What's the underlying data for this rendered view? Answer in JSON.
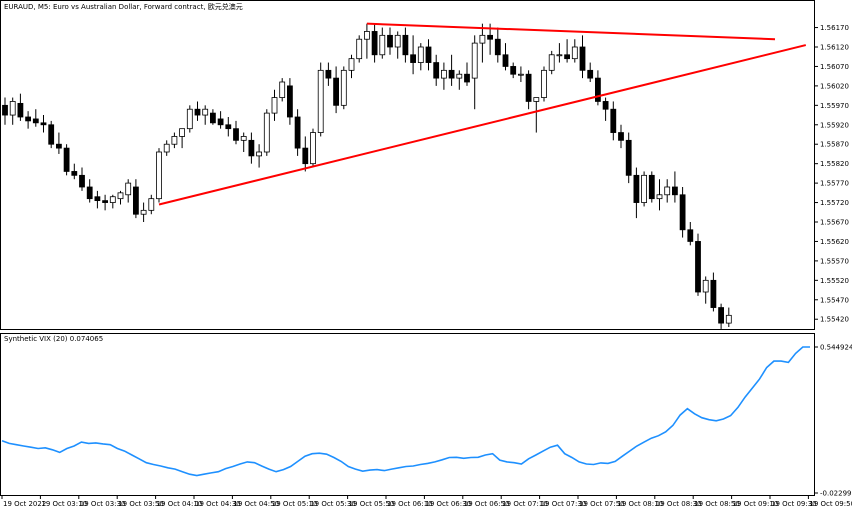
{
  "window": {
    "title": "EURAUD, M5:  Euro vs Australian Dollar, Forward contract, 欧元兑澳元"
  },
  "chart_data": [
    {
      "type": "candlestick",
      "symbol": "EURAUD",
      "timeframe": "M5",
      "price_axis_labels": [
        "1.56170",
        "1.56120",
        "1.56070",
        "1.56020",
        "1.55970",
        "1.55920",
        "1.55870",
        "1.55820",
        "1.55770",
        "1.55720",
        "1.55670",
        "1.55620",
        "1.55570",
        "1.55520",
        "1.55470",
        "1.55420"
      ],
      "ylim": [
        1.554,
        1.5621
      ],
      "x_tick_labels": [
        "19 Oct 2022",
        "19 Oct 03:10",
        "19 Oct 03:30",
        "19 Oct 03:50",
        "19 Oct 04:10",
        "19 Oct 04:30",
        "19 Oct 04:50",
        "19 Oct 05:10",
        "19 Oct 05:30",
        "19 Oct 05:50",
        "19 Oct 06:10",
        "19 Oct 06:30",
        "19 Oct 06:50",
        "19 Oct 07:10",
        "19 Oct 07:30",
        "19 Oct 07:50",
        "19 Oct 08:10",
        "19 Oct 08:30",
        "19 Oct 08:50",
        "19 Oct 09:10",
        "19 Oct 09:30",
        "19 Oct 09:50"
      ],
      "candles": [
        {
          "o": 1.5597,
          "h": 1.5599,
          "l": 1.5592,
          "c": 1.55945
        },
        {
          "o": 1.55945,
          "h": 1.5599,
          "l": 1.5592,
          "c": 1.5598
        },
        {
          "o": 1.55975,
          "h": 1.56,
          "l": 1.5593,
          "c": 1.5594
        },
        {
          "o": 1.5594,
          "h": 1.55955,
          "l": 1.5591,
          "c": 1.5593
        },
        {
          "o": 1.55935,
          "h": 1.5596,
          "l": 1.55915,
          "c": 1.55925
        },
        {
          "o": 1.55925,
          "h": 1.55945,
          "l": 1.559,
          "c": 1.5592
        },
        {
          "o": 1.5592,
          "h": 1.5593,
          "l": 1.5586,
          "c": 1.5587
        },
        {
          "o": 1.5587,
          "h": 1.559,
          "l": 1.55845,
          "c": 1.5586
        },
        {
          "o": 1.5586,
          "h": 1.5587,
          "l": 1.5579,
          "c": 1.558
        },
        {
          "o": 1.558,
          "h": 1.5582,
          "l": 1.5578,
          "c": 1.5579
        },
        {
          "o": 1.5579,
          "h": 1.5581,
          "l": 1.5575,
          "c": 1.5576
        },
        {
          "o": 1.5576,
          "h": 1.5578,
          "l": 1.5572,
          "c": 1.5573
        },
        {
          "o": 1.55735,
          "h": 1.5575,
          "l": 1.55705,
          "c": 1.55725
        },
        {
          "o": 1.55725,
          "h": 1.5574,
          "l": 1.557,
          "c": 1.5572
        },
        {
          "o": 1.5572,
          "h": 1.5574,
          "l": 1.55705,
          "c": 1.55735
        },
        {
          "o": 1.5573,
          "h": 1.5575,
          "l": 1.55715,
          "c": 1.55745
        },
        {
          "o": 1.5574,
          "h": 1.5578,
          "l": 1.5572,
          "c": 1.5577
        },
        {
          "o": 1.5576,
          "h": 1.5578,
          "l": 1.5568,
          "c": 1.5569
        },
        {
          "o": 1.5569,
          "h": 1.5572,
          "l": 1.5567,
          "c": 1.557
        },
        {
          "o": 1.557,
          "h": 1.5574,
          "l": 1.5569,
          "c": 1.5573
        },
        {
          "o": 1.5573,
          "h": 1.5586,
          "l": 1.5572,
          "c": 1.5585
        },
        {
          "o": 1.5585,
          "h": 1.5588,
          "l": 1.5584,
          "c": 1.5587
        },
        {
          "o": 1.5587,
          "h": 1.559,
          "l": 1.5586,
          "c": 1.5589
        },
        {
          "o": 1.5589,
          "h": 1.5591,
          "l": 1.5586,
          "c": 1.5591
        },
        {
          "o": 1.5591,
          "h": 1.5597,
          "l": 1.559,
          "c": 1.5596
        },
        {
          "o": 1.5596,
          "h": 1.5598,
          "l": 1.5593,
          "c": 1.55945
        },
        {
          "o": 1.55945,
          "h": 1.5597,
          "l": 1.5592,
          "c": 1.5596
        },
        {
          "o": 1.5595,
          "h": 1.5596,
          "l": 1.5592,
          "c": 1.55925
        },
        {
          "o": 1.55935,
          "h": 1.55955,
          "l": 1.5591,
          "c": 1.5592
        },
        {
          "o": 1.5592,
          "h": 1.5594,
          "l": 1.5589,
          "c": 1.5591
        },
        {
          "o": 1.5591,
          "h": 1.5593,
          "l": 1.5587,
          "c": 1.5588
        },
        {
          "o": 1.5588,
          "h": 1.559,
          "l": 1.5585,
          "c": 1.5589
        },
        {
          "o": 1.5588,
          "h": 1.559,
          "l": 1.5582,
          "c": 1.5584
        },
        {
          "o": 1.5584,
          "h": 1.5587,
          "l": 1.5581,
          "c": 1.5585
        },
        {
          "o": 1.5585,
          "h": 1.5596,
          "l": 1.5584,
          "c": 1.5595
        },
        {
          "o": 1.5595,
          "h": 1.5601,
          "l": 1.5593,
          "c": 1.5599
        },
        {
          "o": 1.5599,
          "h": 1.5604,
          "l": 1.5598,
          "c": 1.5603
        },
        {
          "o": 1.5602,
          "h": 1.5604,
          "l": 1.5592,
          "c": 1.5594
        },
        {
          "o": 1.5594,
          "h": 1.5596,
          "l": 1.5584,
          "c": 1.5586
        },
        {
          "o": 1.5586,
          "h": 1.5589,
          "l": 1.558,
          "c": 1.5582
        },
        {
          "o": 1.5582,
          "h": 1.5591,
          "l": 1.5581,
          "c": 1.559
        },
        {
          "o": 1.559,
          "h": 1.5608,
          "l": 1.5589,
          "c": 1.5606
        },
        {
          "o": 1.5606,
          "h": 1.5608,
          "l": 1.5602,
          "c": 1.5604
        },
        {
          "o": 1.5604,
          "h": 1.5607,
          "l": 1.5595,
          "c": 1.5597
        },
        {
          "o": 1.5597,
          "h": 1.5607,
          "l": 1.5596,
          "c": 1.5606
        },
        {
          "o": 1.5606,
          "h": 1.561,
          "l": 1.5604,
          "c": 1.5609
        },
        {
          "o": 1.5609,
          "h": 1.5615,
          "l": 1.5608,
          "c": 1.5614
        },
        {
          "o": 1.5614,
          "h": 1.5618,
          "l": 1.5609,
          "c": 1.5616
        },
        {
          "o": 1.5616,
          "h": 1.5618,
          "l": 1.5608,
          "c": 1.561
        },
        {
          "o": 1.561,
          "h": 1.5617,
          "l": 1.5609,
          "c": 1.5615
        },
        {
          "o": 1.5615,
          "h": 1.5617,
          "l": 1.561,
          "c": 1.5612
        },
        {
          "o": 1.5612,
          "h": 1.5616,
          "l": 1.5609,
          "c": 1.5615
        },
        {
          "o": 1.5615,
          "h": 1.5617,
          "l": 1.5608,
          "c": 1.561
        },
        {
          "o": 1.561,
          "h": 1.5615,
          "l": 1.5605,
          "c": 1.5608
        },
        {
          "o": 1.5608,
          "h": 1.5613,
          "l": 1.5606,
          "c": 1.5612
        },
        {
          "o": 1.5612,
          "h": 1.5614,
          "l": 1.5606,
          "c": 1.5608
        },
        {
          "o": 1.5608,
          "h": 1.561,
          "l": 1.5602,
          "c": 1.5604
        },
        {
          "o": 1.5604,
          "h": 1.5608,
          "l": 1.5601,
          "c": 1.5606
        },
        {
          "o": 1.5606,
          "h": 1.561,
          "l": 1.5602,
          "c": 1.5604
        },
        {
          "o": 1.5604,
          "h": 1.5606,
          "l": 1.5601,
          "c": 1.5605
        },
        {
          "o": 1.5605,
          "h": 1.5608,
          "l": 1.5602,
          "c": 1.5603
        },
        {
          "o": 1.5604,
          "h": 1.5615,
          "l": 1.5596,
          "c": 1.5613
        },
        {
          "o": 1.5613,
          "h": 1.5618,
          "l": 1.5608,
          "c": 1.5615
        },
        {
          "o": 1.5615,
          "h": 1.5618,
          "l": 1.561,
          "c": 1.5614
        },
        {
          "o": 1.5614,
          "h": 1.5617,
          "l": 1.5608,
          "c": 1.561
        },
        {
          "o": 1.561,
          "h": 1.5613,
          "l": 1.5606,
          "c": 1.5607
        },
        {
          "o": 1.5607,
          "h": 1.5608,
          "l": 1.5604,
          "c": 1.5605
        },
        {
          "o": 1.5605,
          "h": 1.5607,
          "l": 1.5603,
          "c": 1.5605
        },
        {
          "o": 1.5605,
          "h": 1.5606,
          "l": 1.5596,
          "c": 1.5598
        },
        {
          "o": 1.5598,
          "h": 1.5599,
          "l": 1.559,
          "c": 1.5599
        },
        {
          "o": 1.5599,
          "h": 1.5607,
          "l": 1.5598,
          "c": 1.5606
        },
        {
          "o": 1.5606,
          "h": 1.5611,
          "l": 1.5605,
          "c": 1.561
        },
        {
          "o": 1.561,
          "h": 1.5613,
          "l": 1.5608,
          "c": 1.561
        },
        {
          "o": 1.561,
          "h": 1.5614,
          "l": 1.5608,
          "c": 1.5609
        },
        {
          "o": 1.5609,
          "h": 1.5614,
          "l": 1.5608,
          "c": 1.5612
        },
        {
          "o": 1.5612,
          "h": 1.5615,
          "l": 1.5604,
          "c": 1.5606
        },
        {
          "o": 1.5606,
          "h": 1.5608,
          "l": 1.5603,
          "c": 1.5604
        },
        {
          "o": 1.5604,
          "h": 1.5606,
          "l": 1.5597,
          "c": 1.5598
        },
        {
          "o": 1.5598,
          "h": 1.5599,
          "l": 1.5593,
          "c": 1.5596
        },
        {
          "o": 1.5596,
          "h": 1.5598,
          "l": 1.5588,
          "c": 1.559
        },
        {
          "o": 1.559,
          "h": 1.5592,
          "l": 1.5586,
          "c": 1.5588
        },
        {
          "o": 1.5588,
          "h": 1.559,
          "l": 1.5577,
          "c": 1.5579
        },
        {
          "o": 1.5579,
          "h": 1.5581,
          "l": 1.5568,
          "c": 1.5572
        },
        {
          "o": 1.5572,
          "h": 1.558,
          "l": 1.5571,
          "c": 1.5579
        },
        {
          "o": 1.5579,
          "h": 1.558,
          "l": 1.5572,
          "c": 1.5573
        },
        {
          "o": 1.5573,
          "h": 1.5578,
          "l": 1.557,
          "c": 1.5574
        },
        {
          "o": 1.5574,
          "h": 1.5578,
          "l": 1.5572,
          "c": 1.5576
        },
        {
          "o": 1.5576,
          "h": 1.558,
          "l": 1.5572,
          "c": 1.5574
        },
        {
          "o": 1.5574,
          "h": 1.5576,
          "l": 1.5563,
          "c": 1.5565
        },
        {
          "o": 1.5565,
          "h": 1.5567,
          "l": 1.5561,
          "c": 1.5562
        },
        {
          "o": 1.5562,
          "h": 1.5564,
          "l": 1.5548,
          "c": 1.5549
        },
        {
          "o": 1.5549,
          "h": 1.5553,
          "l": 1.5546,
          "c": 1.5552
        },
        {
          "o": 1.5552,
          "h": 1.5554,
          "l": 1.5544,
          "c": 1.5545
        },
        {
          "o": 1.5545,
          "h": 1.5546,
          "l": 1.55395,
          "c": 1.5541
        },
        {
          "o": 1.5541,
          "h": 1.5545,
          "l": 1.554,
          "c": 1.5543
        }
      ],
      "annotations": [
        {
          "kind": "trendline",
          "color": "#ff0000",
          "from": {
            "index": 20,
            "price": 1.55715
          },
          "to": {
            "index": 104,
            "price": 1.56125
          }
        },
        {
          "kind": "trendline",
          "color": "#ff0000",
          "from": {
            "index": 47,
            "price": 1.5618
          },
          "to": {
            "index": 100,
            "price": 1.5614
          }
        }
      ],
      "colors": {
        "bull_fill": "#ffffff",
        "bear_fill": "#000000",
        "candle_outline": "#000000",
        "trendline": "#ff0000"
      }
    },
    {
      "type": "line",
      "indicator_label": "Synthetic VIX (20) 0.074065",
      "axis_labels": [
        "0.544924",
        "-0.022992"
      ],
      "ylim": [
        -0.022992,
        0.544924
      ],
      "color": "#1e90ff",
      "values": [
        0.18,
        0.17,
        0.165,
        0.16,
        0.155,
        0.15,
        0.153,
        0.145,
        0.135,
        0.15,
        0.16,
        0.175,
        0.17,
        0.172,
        0.168,
        0.165,
        0.15,
        0.14,
        0.125,
        0.11,
        0.095,
        0.088,
        0.082,
        0.075,
        0.07,
        0.06,
        0.05,
        0.045,
        0.05,
        0.055,
        0.06,
        0.072,
        0.08,
        0.09,
        0.098,
        0.095,
        0.082,
        0.07,
        0.06,
        0.068,
        0.08,
        0.1,
        0.12,
        0.13,
        0.132,
        0.128,
        0.115,
        0.1,
        0.08,
        0.07,
        0.062,
        0.066,
        0.068,
        0.064,
        0.07,
        0.075,
        0.08,
        0.082,
        0.088,
        0.092,
        0.098,
        0.106,
        0.115,
        0.116,
        0.112,
        0.115,
        0.116,
        0.125,
        0.13,
        0.105,
        0.098,
        0.095,
        0.09,
        0.11,
        0.125,
        0.14,
        0.155,
        0.163,
        0.13,
        0.115,
        0.098,
        0.09,
        0.088,
        0.094,
        0.092,
        0.1,
        0.12,
        0.14,
        0.16,
        0.175,
        0.19,
        0.2,
        0.215,
        0.24,
        0.28,
        0.305,
        0.285,
        0.27,
        0.262,
        0.258,
        0.265,
        0.278,
        0.31,
        0.35,
        0.385,
        0.42,
        0.465,
        0.49,
        0.49,
        0.485,
        0.52,
        0.545,
        0.545
      ]
    }
  ]
}
